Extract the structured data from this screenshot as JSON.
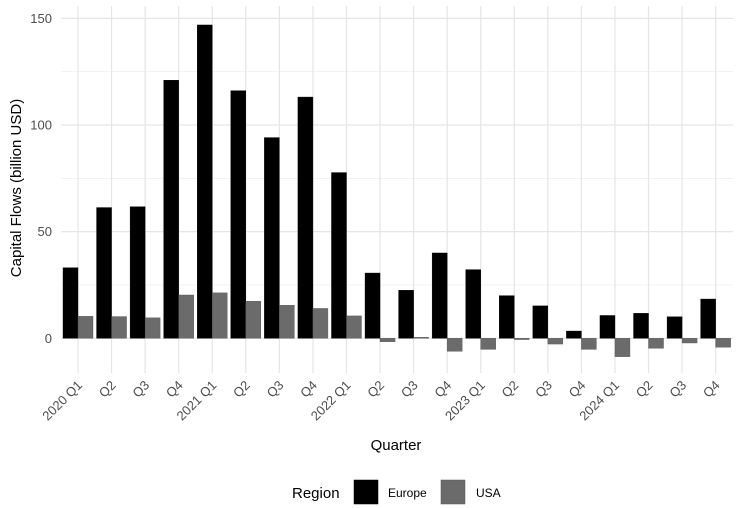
{
  "chart_data": {
    "type": "bar",
    "title": "",
    "xlabel": "Quarter",
    "ylabel": "Capital Flows (billion USD)",
    "ylim": [
      -10,
      152
    ],
    "yticks": [
      0,
      50,
      100,
      150
    ],
    "grid": true,
    "legend_position": "bottom",
    "legend_title": "Region",
    "categories": [
      "2020 Q1",
      "Q2",
      "Q3",
      "Q4",
      "2021 Q1",
      "Q2",
      "Q3",
      "Q4",
      "2022 Q1",
      "Q2",
      "Q3",
      "Q4",
      "2023 Q1",
      "Q2",
      "Q3",
      "Q4",
      "2024 Q1",
      "Q2",
      "Q3",
      "Q4"
    ],
    "series": [
      {
        "name": "Europe",
        "color": "#000000",
        "values": [
          33.1,
          61.3,
          61.7,
          121.0,
          146.9,
          116.1,
          94.1,
          113.1,
          77.7,
          30.6,
          22.5,
          40.0,
          32.2,
          20.0,
          15.2,
          3.4,
          10.7,
          11.7,
          10.1,
          18.4
        ]
      },
      {
        "name": "USA",
        "color": "#6b6b6b",
        "values": [
          10.3,
          10.2,
          9.6,
          20.3,
          21.3,
          17.4,
          15.5,
          14.0,
          10.5,
          -1.6,
          0.5,
          -6.1,
          -5.2,
          -0.6,
          -2.7,
          -5.2,
          -8.6,
          -4.7,
          -2.2,
          -4.2
        ]
      }
    ]
  }
}
